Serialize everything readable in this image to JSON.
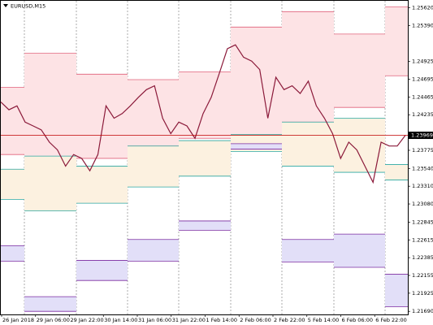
{
  "chart_data": {
    "type": "line",
    "title": "EURUSD,M15",
    "x_labels": [
      "26 Jan 2018",
      "29 Jan 06:00",
      "29 Jan 22:00",
      "30 Jan 14:00",
      "31 Jan 06:00",
      "31 Jan 22:00",
      "1 Feb 14:00",
      "2 Feb 06:00",
      "2 Feb 22:00",
      "5 Feb 14:00",
      "6 Feb 06:00",
      "6 Feb 22:00"
    ],
    "series": [
      {
        "color": "#8b1a3a",
        "values": [
          1.244,
          1.243,
          1.2435,
          1.2414,
          1.2409,
          1.2404,
          1.2388,
          1.2378,
          1.2357,
          1.2372,
          1.2367,
          1.2351,
          1.2372,
          1.2435,
          1.2419,
          1.2425,
          1.2435,
          1.2446,
          1.2456,
          1.2461,
          1.2419,
          1.2399,
          1.2414,
          1.2409,
          1.2393,
          1.2425,
          1.2446,
          1.2477,
          1.2509,
          1.2514,
          1.2498,
          1.2493,
          1.2482,
          1.2419,
          1.2472,
          1.2456,
          1.2461,
          1.2451,
          1.2467,
          1.2435,
          1.2419,
          1.2399,
          1.2367,
          1.2388,
          1.2378,
          1.2357,
          1.2336,
          1.2388,
          1.2383,
          1.2383,
          1.23969
        ]
      }
    ],
    "current_price": 1.23969,
    "current_price_color": "#c00000",
    "ylim": [
      1.2165,
      1.2571
    ],
    "yticks": [
      {
        "value": 1.2562,
        "label": "1.25620"
      },
      {
        "value": 1.2539,
        "label": "1.25390"
      },
      {
        "value": 1.24925,
        "label": "1.24925"
      },
      {
        "value": 1.24695,
        "label": "1.24695"
      },
      {
        "value": 1.24465,
        "label": "1.24465"
      },
      {
        "value": 1.24235,
        "label": "1.24235"
      },
      {
        "value": 1.23775,
        "label": "1.23775"
      },
      {
        "value": 1.2354,
        "label": "1.23540"
      },
      {
        "value": 1.2331,
        "label": "1.23310"
      },
      {
        "value": 1.2308,
        "label": "1.23080"
      },
      {
        "value": 1.22845,
        "label": "1.22845"
      },
      {
        "value": 1.22615,
        "label": "1.22615"
      },
      {
        "value": 1.22385,
        "label": "1.22385"
      },
      {
        "value": 1.22155,
        "label": "1.22155"
      },
      {
        "value": 1.21925,
        "label": "1.21925"
      },
      {
        "value": 1.2169,
        "label": "1.21690"
      }
    ],
    "zones": [
      {
        "fill": "#fde3e5",
        "stroke": "#e0607a",
        "ranges": [
          {
            "high": 1.2459,
            "low": 1.2372
          },
          {
            "high": 1.2503,
            "low": 1.2367
          },
          {
            "high": 1.2476,
            "low": 1.2367
          },
          {
            "high": 1.2469,
            "low": 1.2383
          },
          {
            "high": 1.2479,
            "low": 1.2393
          },
          {
            "high": 1.2537,
            "low": 1.2385
          },
          {
            "high": 1.2557,
            "low": 1.2414
          },
          {
            "high": 1.2528,
            "low": 1.2433
          },
          {
            "high": 1.2563,
            "low": 1.2474
          }
        ]
      },
      {
        "fill": "#fcf1e0",
        "stroke": "#2aa7a0",
        "ranges": [
          {
            "high": 1.2353,
            "low": 1.2314
          },
          {
            "high": 1.237,
            "low": 1.2299
          },
          {
            "high": 1.2357,
            "low": 1.2309
          },
          {
            "high": 1.2383,
            "low": 1.233
          },
          {
            "high": 1.239,
            "low": 1.2344
          },
          {
            "high": 1.2398,
            "low": 1.2376
          },
          {
            "high": 1.2414,
            "low": 1.2357
          },
          {
            "high": 1.2419,
            "low": 1.2349
          },
          {
            "high": 1.2359,
            "low": 1.2339
          }
        ]
      },
      {
        "fill": "#e2dff8",
        "stroke": "#7a2aa0",
        "ranges": [
          {
            "high": 1.2254,
            "low": 1.2234
          },
          {
            "high": 1.2188,
            "low": 1.2169
          },
          {
            "high": 1.2235,
            "low": 1.2209
          },
          {
            "high": 1.2262,
            "low": 1.2234
          },
          {
            "high": 1.2286,
            "low": 1.2274
          },
          {
            "high": 1.2386,
            "low": 1.2379
          },
          {
            "high": 1.2262,
            "low": 1.2233
          },
          {
            "high": 1.2269,
            "low": 1.2226
          },
          {
            "high": 1.2217,
            "low": 1.2175
          }
        ]
      }
    ]
  }
}
